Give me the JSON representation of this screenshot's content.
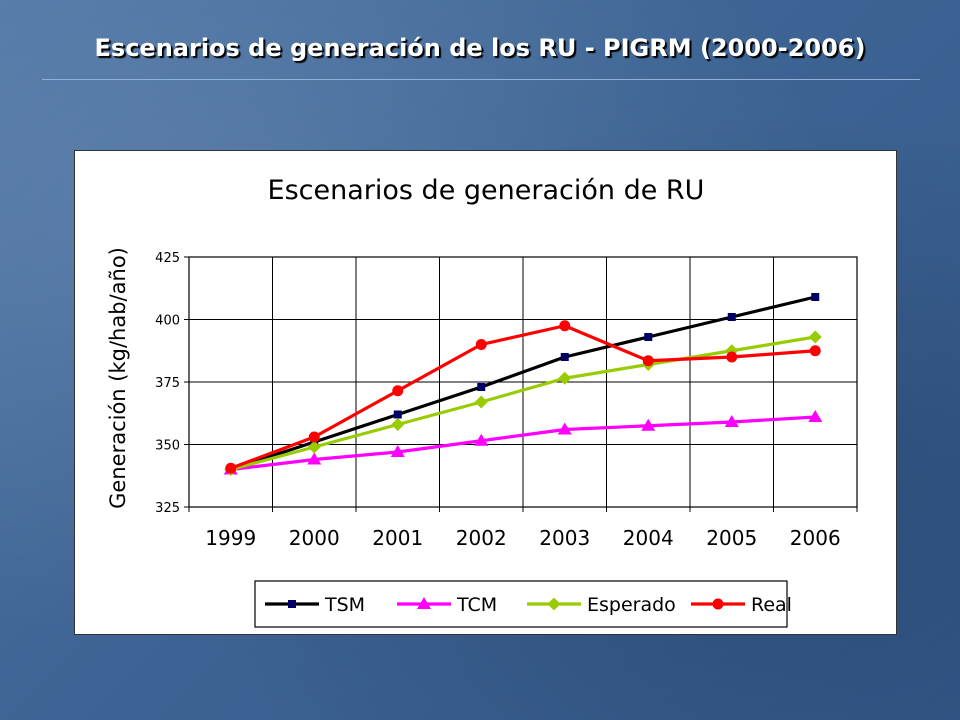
{
  "slide": {
    "title": "Escenarios de generación de los RU - PIGRM (2000-2006)"
  },
  "chart_data": {
    "type": "line",
    "title": "Escenarios de generación de RU",
    "xlabel": "",
    "ylabel": "Generación (kg/hab/año)",
    "categories": [
      "1999",
      "2000",
      "2001",
      "2002",
      "2003",
      "2004",
      "2005",
      "2006"
    ],
    "ylim": [
      325,
      425
    ],
    "yticks": [
      325,
      350,
      375,
      400,
      425
    ],
    "grid": true,
    "legend_position": "bottom",
    "series": [
      {
        "name": "TSM",
        "color": "#000000",
        "marker": "square",
        "values": [
          340,
          351,
          362,
          373,
          385,
          393,
          401,
          409
        ]
      },
      {
        "name": "TCM",
        "color": "#ff00ff",
        "marker": "triangle",
        "values": [
          340,
          344,
          347,
          351.5,
          356,
          357.5,
          359,
          361
        ]
      },
      {
        "name": "Esperado",
        "color": "#99cc00",
        "marker": "diamond",
        "values": [
          340,
          349,
          358,
          367,
          376.5,
          382,
          387.5,
          393
        ]
      },
      {
        "name": "Real",
        "color": "#ff0000",
        "marker": "circle",
        "values": [
          340.5,
          353,
          371.5,
          390,
          397.5,
          383.5,
          385,
          387.5
        ]
      }
    ]
  }
}
